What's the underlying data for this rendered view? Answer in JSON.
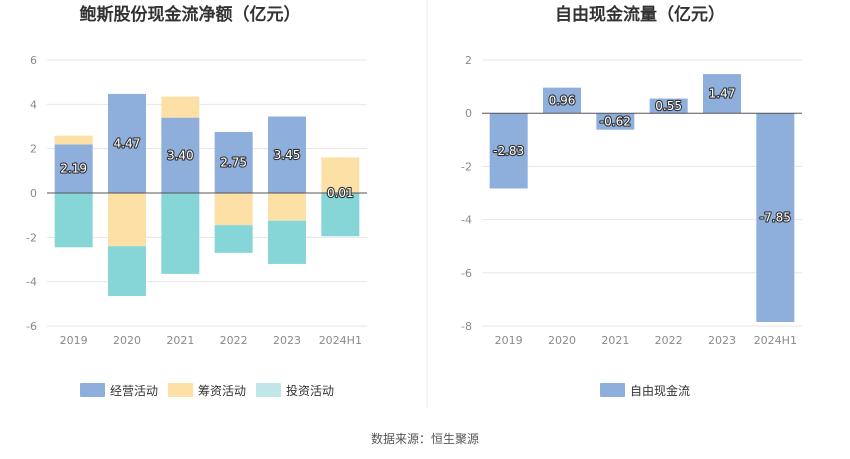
{
  "source": "数据来源：恒生聚源",
  "colors": {
    "operating": "#8eaedc",
    "financing": "#fde0a6",
    "investing": "#86d6d7",
    "free_cash_flow": "#8eaedc",
    "investing_legend": "#c0e6e8"
  },
  "chart_data": [
    {
      "type": "bar",
      "stacked": true,
      "title": "鲍斯股份现金流净额（亿元）",
      "categories": [
        "2019",
        "2020",
        "2021",
        "2022",
        "2023",
        "2024H1"
      ],
      "ylim": [
        -6,
        6
      ],
      "yticks": [
        6,
        4,
        2,
        0,
        -2,
        -4,
        -6
      ],
      "grid": true,
      "legend_position": "bottom",
      "series": [
        {
          "name": "经营活动",
          "key": "operating",
          "values": [
            2.19,
            4.47,
            3.4,
            2.75,
            3.45,
            0.01
          ],
          "labels": [
            "2.19",
            "4.47",
            "3.40",
            "2.75",
            "3.45",
            "0.01"
          ]
        },
        {
          "name": "筹资活动",
          "key": "financing",
          "values": [
            0.4,
            -2.4,
            0.95,
            -1.45,
            -1.25,
            1.6
          ]
        },
        {
          "name": "投资活动",
          "key": "investing",
          "values": [
            -2.45,
            -2.25,
            -3.65,
            -1.25,
            -1.95,
            -1.95
          ]
        }
      ]
    },
    {
      "type": "bar",
      "title": "自由现金流量（亿元）",
      "categories": [
        "2019",
        "2020",
        "2021",
        "2022",
        "2023",
        "2024H1"
      ],
      "ylim": [
        -8,
        2
      ],
      "yticks": [
        2,
        0,
        -2,
        -4,
        -6,
        -8
      ],
      "grid": true,
      "legend_position": "bottom",
      "series": [
        {
          "name": "自由现金流",
          "key": "free_cash_flow",
          "values": [
            -2.83,
            0.96,
            -0.62,
            0.55,
            1.47,
            -7.85
          ],
          "labels": [
            "-2.83",
            "0.96",
            "-0.62",
            "0.55",
            "1.47",
            "-7.85"
          ]
        }
      ]
    }
  ]
}
